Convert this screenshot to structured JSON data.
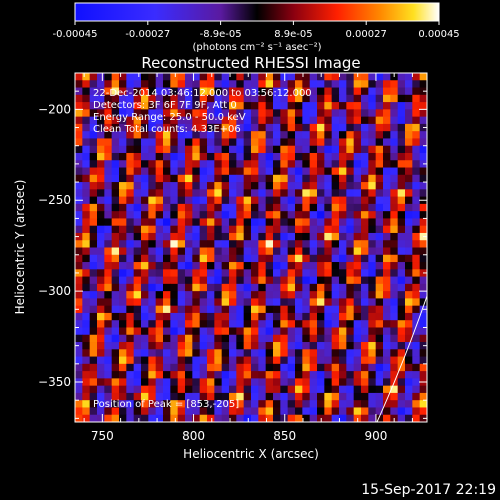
{
  "colorbar": {
    "ticks": [
      "-0.00045",
      "-0.00027",
      "-8.9e-05",
      "8.9e-05",
      "0.00027",
      "0.00045"
    ],
    "unit_label": "(photons cm⁻² s⁻¹ asec⁻²)"
  },
  "chart_data": {
    "type": "heatmap",
    "title": "Reconstructed RHESSI Image",
    "xlabel": "Heliocentric X (arcsec)",
    "ylabel": "Heliocentric Y (arcsec)",
    "xlim": [
      735,
      928
    ],
    "ylim": [
      -372,
      -180
    ],
    "xticks": [
      750,
      800,
      850,
      900
    ],
    "yticks": [
      -200,
      -250,
      -300,
      -350
    ],
    "xtick_labels": [
      "750",
      "800",
      "850",
      "900"
    ],
    "ytick_labels": [
      "-200",
      "-250",
      "-300",
      "-350"
    ],
    "colormap": "blue-purple-red-yellow-white",
    "value_range": [
      -0.00045,
      0.00045
    ],
    "annotations": [
      "22-Dec-2014 03:46:12.000 to 03:56:12.000",
      "Detectors: 3F 6F 7F 9F, Att 0",
      "Energy Range: 25.0 - 50.0 keV",
      "Clean    Total counts: 4.33E+06"
    ],
    "peak_label": "Position of Peak = [853,-205]",
    "peak": [
      853,
      -205
    ]
  },
  "timestamp": "15-Sep-2017 22:19"
}
